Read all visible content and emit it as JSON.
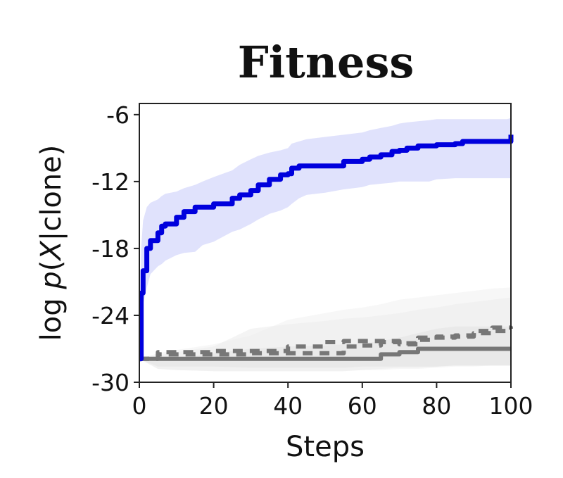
{
  "chart_data": {
    "type": "line",
    "title": "Fitness",
    "xlabel": "Steps",
    "ylabel": "log p(X|clone)",
    "xlim": [
      0,
      100
    ],
    "ylim": [
      -30,
      -5
    ],
    "xticks": [
      0,
      20,
      40,
      60,
      80,
      100
    ],
    "xtick_labels": [
      "0",
      "20",
      "40",
      "60",
      "80",
      "100"
    ],
    "yticks": [
      -30,
      -24,
      -18,
      -12,
      -6
    ],
    "ytick_labels": [
      "-30",
      "-24",
      "-18",
      "-12",
      "-6"
    ],
    "grid": false,
    "legend": "none",
    "series": [
      {
        "color": "#0000dd",
        "band_color": "#d5d8fb",
        "style": "solid",
        "x": [
          0,
          0.5,
          1,
          2,
          3,
          5,
          6,
          7,
          10,
          12,
          15,
          17,
          20,
          25,
          27,
          30,
          32,
          35,
          38,
          40,
          41,
          43,
          45,
          50,
          55,
          60,
          62,
          65,
          68,
          70,
          72,
          75,
          78,
          80,
          85,
          87,
          90,
          95,
          99,
          100
        ],
        "y": [
          -27.9,
          -22,
          -20,
          -18,
          -17.3,
          -16.6,
          -16,
          -15.8,
          -15.2,
          -14.7,
          -14.3,
          -14.3,
          -14,
          -13.5,
          -13.2,
          -12.8,
          -12.3,
          -11.8,
          -11.4,
          -11.3,
          -10.8,
          -10.6,
          -10.6,
          -10.6,
          -10.2,
          -10,
          -9.8,
          -9.6,
          -9.3,
          -9.2,
          -9,
          -8.8,
          -8.8,
          -8.7,
          -8.6,
          -8.4,
          -8.4,
          -8.4,
          -8.4,
          -7.8
        ],
        "upper": [
          -27.9,
          -18,
          -15.5,
          -14.3,
          -13.9,
          -13.6,
          -13.3,
          -13.1,
          -12.9,
          -12.6,
          -12.3,
          -12,
          -11.6,
          -11,
          -10.5,
          -10,
          -9.7,
          -9.4,
          -9.2,
          -9,
          -8.6,
          -8.4,
          -8.2,
          -8,
          -7.8,
          -7.6,
          -7.4,
          -7.2,
          -7,
          -6.8,
          -6.7,
          -6.6,
          -6.5,
          -6.4,
          -6.4,
          -6.4,
          -6.4,
          -6.4,
          -6.4,
          -6.3
        ],
        "lower": [
          -27.9,
          -25,
          -23,
          -21.5,
          -20.3,
          -19.6,
          -19.4,
          -19.1,
          -18.6,
          -18.4,
          -18.3,
          -17.7,
          -17.4,
          -16.5,
          -16.3,
          -15.8,
          -15.4,
          -14.9,
          -14.6,
          -14.3,
          -14,
          -13.5,
          -13.2,
          -13,
          -12.7,
          -12.5,
          -12.3,
          -12.2,
          -12.1,
          -12,
          -12,
          -12,
          -12,
          -11.8,
          -11.7,
          -11.7,
          -11.7,
          -11.7,
          -11.7,
          -11.7
        ]
      },
      {
        "color": "#777777",
        "band_color": "#e4e4e4",
        "style": "solid",
        "x": [
          0,
          5,
          10,
          20,
          30,
          40,
          50,
          55,
          60,
          65,
          70,
          75,
          80,
          85,
          90,
          95,
          100
        ],
        "y": [
          -27.9,
          -27.9,
          -27.9,
          -27.9,
          -27.9,
          -27.9,
          -27.9,
          -27.9,
          -27.9,
          -27.5,
          -27.3,
          -27,
          -27,
          -27,
          -27,
          -27,
          -27
        ],
        "upper": [
          -27.9,
          -27.9,
          -27.9,
          -27.4,
          -27,
          -26.8,
          -26.7,
          -26.6,
          -26.5,
          -26.3,
          -26,
          -25.6,
          -25.2,
          -25,
          -25,
          -25,
          -25
        ],
        "lower": [
          -27.9,
          -28.6,
          -28.6,
          -28.6,
          -28.7,
          -28.7,
          -28.7,
          -28.7,
          -28.6,
          -28.6,
          -28.6,
          -28.6,
          -28.6,
          -28.5,
          -28.5,
          -28.5,
          -28.5
        ]
      },
      {
        "color": "#777777",
        "band_color": "#ececec",
        "style": "dashed",
        "x": [
          0,
          5,
          10,
          20,
          30,
          40,
          50,
          55,
          60,
          65,
          70,
          75,
          80,
          85,
          90,
          95,
          100
        ],
        "y": [
          -27.9,
          -27.5,
          -27.5,
          -27.5,
          -27.4,
          -27.4,
          -27.4,
          -26.8,
          -26.7,
          -26.4,
          -26.6,
          -26.2,
          -26,
          -25.8,
          -25.6,
          -25.4,
          -25.3
        ],
        "upper": [
          -27.9,
          -27.6,
          -27.3,
          -26.8,
          -25.2,
          -24.8,
          -24.5,
          -24.3,
          -24.2,
          -24,
          -23.8,
          -23.5,
          -23.3,
          -23,
          -22.8,
          -22.6,
          -22.4
        ],
        "lower": [
          -27.9,
          -28.8,
          -28.9,
          -29,
          -29,
          -29,
          -29,
          -29,
          -28.9,
          -28.8,
          -28.7,
          -28.7,
          -28.6,
          -28.5,
          -28.5,
          -28.5,
          -28.5
        ]
      },
      {
        "color": "#777777",
        "band_color": "#f2f2f2",
        "style": "dashed",
        "x": [
          0,
          5,
          10,
          20,
          30,
          40,
          50,
          55,
          60,
          65,
          70,
          75,
          80,
          85,
          90,
          95,
          100
        ],
        "y": [
          -27.9,
          -27.3,
          -27.3,
          -27.2,
          -27.2,
          -26.8,
          -26.4,
          -26.3,
          -26.3,
          -26.3,
          -26.5,
          -26,
          -25.9,
          -25.9,
          -25.4,
          -25.1,
          -25.2
        ],
        "upper": [
          -27.9,
          -27.4,
          -27.1,
          -26.6,
          -25.8,
          -24.4,
          -23.8,
          -23.5,
          -23.3,
          -23,
          -22.6,
          -22.4,
          -22.2,
          -22,
          -21.8,
          -21.6,
          -21.5
        ],
        "lower": [
          -27.9,
          -28.8,
          -28.9,
          -29,
          -29,
          -29,
          -29,
          -29,
          -28.9,
          -28.9,
          -28.8,
          -28.8,
          -28.7,
          -28.6,
          -28.6,
          -28.5,
          -28.5
        ]
      }
    ]
  }
}
